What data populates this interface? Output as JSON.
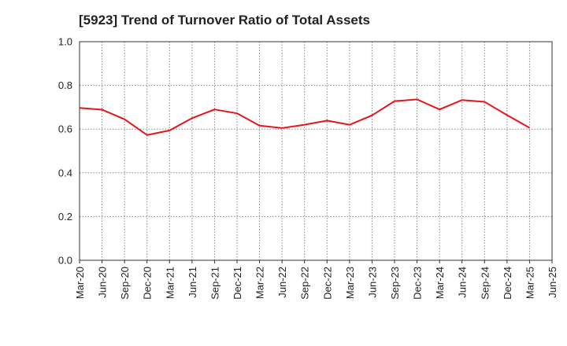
{
  "chart_data": {
    "type": "line",
    "title": "[5923]  Trend of Turnover Ratio of Total Assets",
    "xlabel": "",
    "ylabel": "",
    "ylim": [
      0.0,
      1.0
    ],
    "yticks": [
      "0.0",
      "0.2",
      "0.4",
      "0.6",
      "0.8",
      "1.0"
    ],
    "grid": true,
    "legend": "none",
    "categories": [
      "Mar-20",
      "Jun-20",
      "Sep-20",
      "Dec-20",
      "Mar-21",
      "Jun-21",
      "Sep-21",
      "Dec-21",
      "Mar-22",
      "Jun-22",
      "Sep-22",
      "Dec-22",
      "Mar-23",
      "Jun-23",
      "Sep-23",
      "Dec-23",
      "Mar-24",
      "Jun-24",
      "Sep-24",
      "Dec-24",
      "Mar-25",
      "Jun-25"
    ],
    "series": [
      {
        "color": "#e8141b",
        "values": [
          0.697,
          0.689,
          0.645,
          0.573,
          0.594,
          0.65,
          0.69,
          0.672,
          0.616,
          0.605,
          0.62,
          0.639,
          0.62,
          0.663,
          0.728,
          0.736,
          0.69,
          0.733,
          0.725,
          0.664,
          0.606,
          null
        ]
      }
    ],
    "colors": {
      "line": "#e8141b",
      "axis": "#333333",
      "grid": "#888888"
    }
  }
}
